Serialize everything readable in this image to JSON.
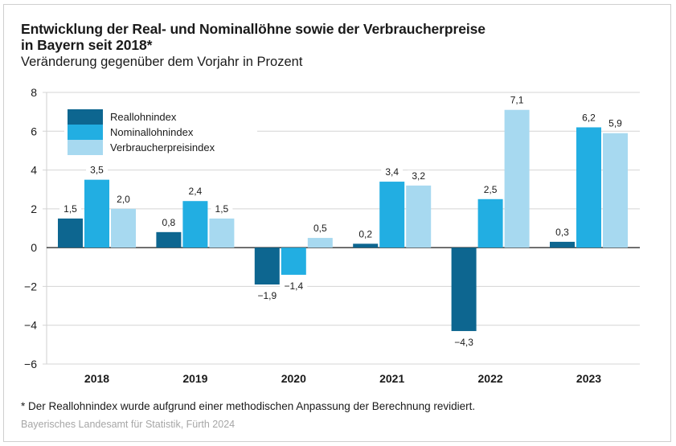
{
  "header": {
    "title_line1": "Entwicklung der Real- und Nominallöhne sowie der Verbraucherpreise",
    "title_line2": "in Bayern seit 2018*",
    "subtitle": "Veränderung gegenüber dem Vorjahr in Prozent"
  },
  "footer": {
    "footnote": "* Der Reallohnindex wurde aufgrund einer methodischen Anpassung der Berechnung revidiert.",
    "source": "Bayerisches Landesamt für Statistik, Fürth 2024"
  },
  "chart_data": {
    "type": "bar",
    "title": "Entwicklung der Real- und Nominallöhne sowie der Verbraucherpreise in Bayern seit 2018*",
    "subtitle": "Veränderung gegenüber dem Vorjahr in Prozent",
    "xlabel": "",
    "ylabel": "",
    "categories": [
      "2018",
      "2019",
      "2020",
      "2021",
      "2022",
      "2023"
    ],
    "series": [
      {
        "name": "Reallohnindex",
        "color": "#0d6690",
        "values": [
          1.5,
          0.8,
          -1.9,
          0.2,
          -4.3,
          0.3
        ]
      },
      {
        "name": "Nominallohnindex",
        "color": "#22aee2",
        "values": [
          3.5,
          2.4,
          -1.4,
          3.4,
          2.5,
          6.2
        ]
      },
      {
        "name": "Verbraucherpreisindex",
        "color": "#a7d9f0",
        "values": [
          2.0,
          1.5,
          0.5,
          3.2,
          7.1,
          5.9
        ]
      }
    ],
    "value_labels": [
      [
        "1,5",
        "0,8",
        "−1,9",
        "0,2",
        "−4,3",
        "0,3"
      ],
      [
        "3,5",
        "2,4",
        "−1,4",
        "3,4",
        "2,5",
        "6,2"
      ],
      [
        "2,0",
        "1,5",
        "0,5",
        "3,2",
        "7,1",
        "5,9"
      ]
    ],
    "missing": [
      [
        false,
        false,
        false,
        false,
        false,
        false
      ],
      [
        false,
        false,
        false,
        false,
        false,
        false
      ],
      [
        false,
        false,
        false,
        false,
        false,
        false
      ]
    ],
    "ylim": [
      -6,
      8
    ],
    "yticks": [
      8,
      6,
      4,
      2,
      0,
      -2,
      -4,
      -6
    ],
    "ytick_labels": [
      "8",
      "6",
      "4",
      "2",
      "0",
      "−2",
      "−4",
      "−6"
    ],
    "grid": true,
    "legend_position": "top-left"
  }
}
